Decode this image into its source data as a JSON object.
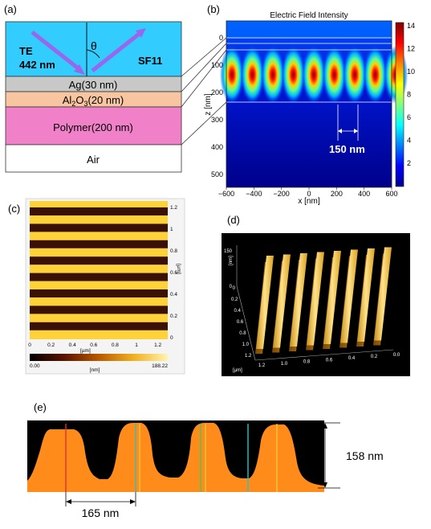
{
  "panels": {
    "a": {
      "label": "(a)",
      "wave": "TE",
      "wavelength": "442 nm",
      "theta": "θ",
      "prism": "SF11",
      "layers": [
        "Ag(30 nm)",
        "Al2O3(20 nm)",
        "Polymer(200 nm)",
        "Air"
      ],
      "colors": {
        "prism": "#33ccff",
        "ag": "#c8c8c8",
        "al2o3": "#f7c59f",
        "polymer": "#f080c8",
        "air": "#ffffff",
        "beam": "#9966ee"
      }
    },
    "b": {
      "label": "(b)",
      "title": "Electric Field Intensity",
      "annotation": "150 nm",
      "xlabel": "x [nm]",
      "ylabel": "z [nm]",
      "xticks": [
        "−600",
        "−400",
        "−200",
        "0",
        "200",
        "400",
        "600"
      ],
      "yticks": [
        "0",
        "100",
        "200",
        "300",
        "400",
        "500"
      ],
      "colorbar_ticks": [
        "14",
        "12",
        "10",
        "8",
        "6",
        "4",
        "2"
      ],
      "colormap": "jet"
    },
    "c": {
      "label": "(c)",
      "xticks": [
        "0",
        "0.2",
        "0.4",
        "0.6",
        "0.8",
        "1",
        "1.2"
      ],
      "yticks": [
        "1.2",
        "1",
        "0.8",
        "0.6",
        "0.4",
        "0.2",
        "0"
      ],
      "unit": "[µm]",
      "cbar_min": "0.00",
      "cbar_max": "188.22",
      "cbar_unit": "[nm]"
    },
    "d": {
      "label": "(d)",
      "z_unit": "[nm]",
      "z_top": "150",
      "z_zero": "0",
      "left_ticks": [
        "0",
        "0.2",
        "0.4",
        "0.6",
        "0.8",
        "1.0",
        "1.2"
      ],
      "left_unit": "[µm]",
      "bottom_ticks": [
        "1.2",
        "1.0",
        "0.8",
        "0.6",
        "0.4",
        "0.2",
        "0.0"
      ]
    },
    "e": {
      "label": "(e)",
      "height_label": "158 nm",
      "period_label": "165 nm",
      "colors": {
        "profile": "#ff8c1a",
        "line_red": "#e03030",
        "line_green": "#3cd060",
        "line_cyan": "#30c0c0",
        "line_yellow": "#e8d040"
      }
    }
  }
}
